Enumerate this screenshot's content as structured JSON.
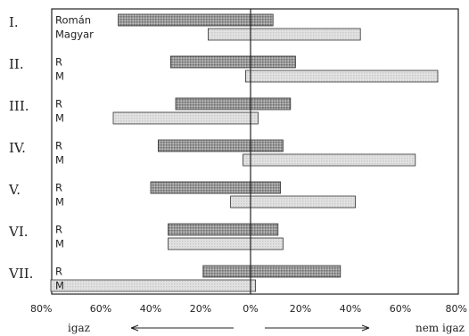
{
  "chart_data": {
    "type": "bar",
    "orientation": "horizontal-diverging",
    "x_tick_labels": [
      "80%",
      "60%",
      "40%",
      "20%",
      "0%",
      "20%",
      "40%",
      "60%",
      "80%"
    ],
    "direction_labels": {
      "left": "igaz",
      "right": "nem igaz"
    },
    "series_labels": {
      "R": "Román",
      "M": "Magyar"
    },
    "groups": [
      {
        "label": "I.",
        "rows": [
          {
            "name": "Román",
            "left": 53,
            "right": 9
          },
          {
            "name": "Magyar",
            "left": 17,
            "right": 44
          }
        ]
      },
      {
        "label": "II.",
        "rows": [
          {
            "name": "R",
            "left": 32,
            "right": 18
          },
          {
            "name": "M",
            "left": 2,
            "right": 75
          }
        ]
      },
      {
        "label": "III.",
        "rows": [
          {
            "name": "R",
            "left": 30,
            "right": 16
          },
          {
            "name": "M",
            "left": 55,
            "right": 3
          }
        ]
      },
      {
        "label": "IV.",
        "rows": [
          {
            "name": "R",
            "left": 37,
            "right": 13
          },
          {
            "name": "M",
            "left": 3,
            "right": 66
          }
        ]
      },
      {
        "label": "V.",
        "rows": [
          {
            "name": "R",
            "left": 40,
            "right": 12
          },
          {
            "name": "M",
            "left": 8,
            "right": 42
          }
        ]
      },
      {
        "label": "VI.",
        "rows": [
          {
            "name": "R",
            "left": 33,
            "right": 11
          },
          {
            "name": "M",
            "left": 33,
            "right": 13
          }
        ]
      },
      {
        "label": "VII.",
        "rows": [
          {
            "name": "R",
            "left": 19,
            "right": 36
          },
          {
            "name": "M",
            "left": 80,
            "right": 2
          }
        ]
      }
    ],
    "xlim": [
      -80,
      80
    ]
  }
}
